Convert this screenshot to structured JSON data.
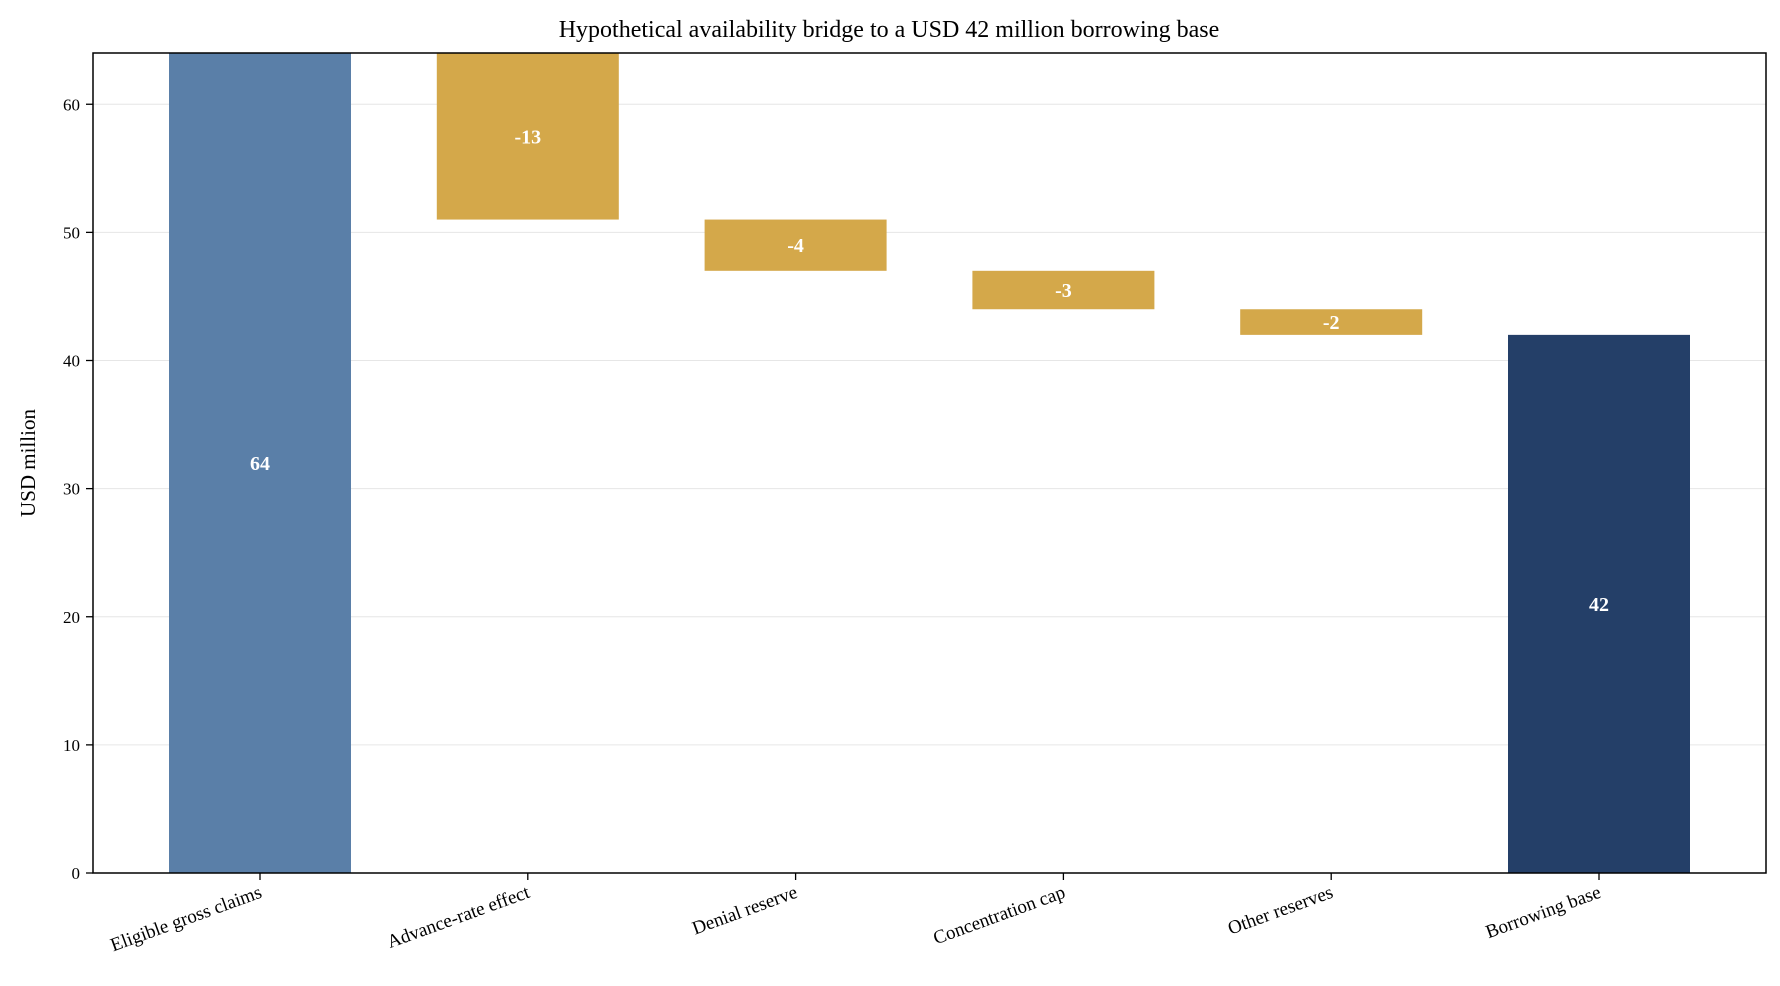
{
  "chart_data": {
    "type": "bar",
    "subtype": "waterfall",
    "title": "Hypothetical availability bridge to a USD 42 million borrowing base",
    "xlabel": "",
    "ylabel": "USD million",
    "ylim": [
      0,
      64
    ],
    "yticks": [
      0,
      10,
      20,
      30,
      40,
      50,
      60
    ],
    "grid": true,
    "categories": [
      "Eligible gross claims",
      "Advance-rate effect",
      "Denial reserve",
      "Concentration cap",
      "Other reserves",
      "Borrowing base"
    ],
    "steps": [
      {
        "category": "Eligible gross claims",
        "kind": "total",
        "value": 64,
        "label": "64",
        "color": "#5a7fa8"
      },
      {
        "category": "Advance-rate effect",
        "kind": "delta",
        "value": -13,
        "label": "-13",
        "color": "#d4a84a"
      },
      {
        "category": "Denial reserve",
        "kind": "delta",
        "value": -4,
        "label": "-4",
        "color": "#d4a84a"
      },
      {
        "category": "Concentration cap",
        "kind": "delta",
        "value": -3,
        "label": "-3",
        "color": "#d4a84a"
      },
      {
        "category": "Other reserves",
        "kind": "delta",
        "value": -2,
        "label": "-2",
        "color": "#d4a84a"
      },
      {
        "category": "Borrowing base",
        "kind": "total",
        "value": 42,
        "label": "42",
        "color": "#243f68"
      }
    ]
  }
}
